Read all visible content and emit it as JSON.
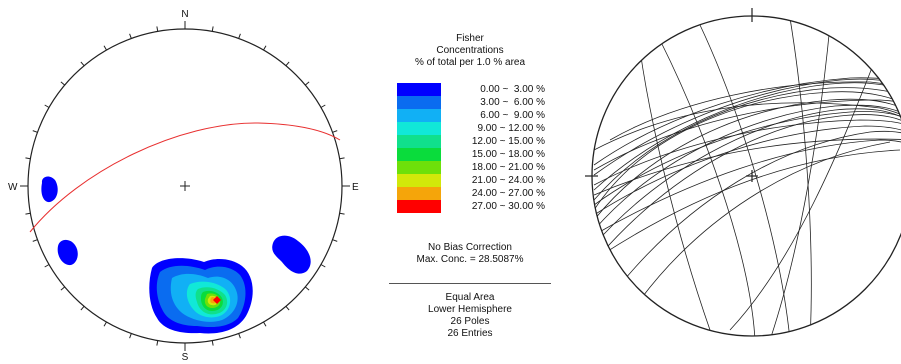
{
  "stereonet": {
    "directions": {
      "north": "N",
      "south": "S",
      "east": "E",
      "west": "W"
    }
  },
  "legend": {
    "title_lines": [
      "Fisher",
      "Concentrations",
      "% of total per 1.0 % area"
    ],
    "ranges": [
      {
        "label": "0.00 ~  3.00 %",
        "color": "#0000ff"
      },
      {
        "label": "3.00 ~  6.00 %",
        "color": "#0a6cf0"
      },
      {
        "label": "6.00 ~  9.00 %",
        "color": "#11b0f5"
      },
      {
        "label": "9.00 ~ 12.00 %",
        "color": "#11e8d8"
      },
      {
        "label": "12.00 ~ 15.00 %",
        "color": "#10e08c"
      },
      {
        "label": "15.00 ~ 18.00 %",
        "color": "#0adc3c"
      },
      {
        "label": "18.00 ~ 21.00 %",
        "color": "#6ee00a"
      },
      {
        "label": "21.00 ~ 24.00 %",
        "color": "#d2e80a"
      },
      {
        "label": "24.00 ~ 27.00 %",
        "color": "#f5a50a"
      },
      {
        "label": "27.00 ~ 30.00 %",
        "color": "#ff0000"
      }
    ],
    "bias_note": "No Bias Correction",
    "max_conc": "Max. Conc. = 28.5087%",
    "projection": "Equal Area",
    "hemisphere": "Lower Hemisphere",
    "poles": "26 Poles",
    "entries": "26 Entries"
  }
}
